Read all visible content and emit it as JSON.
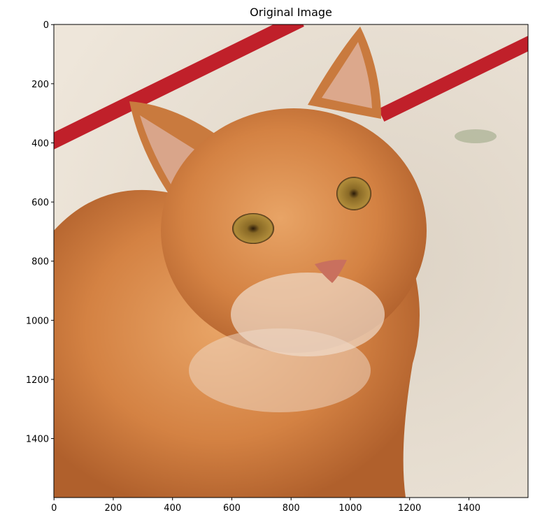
{
  "title": "Original Image",
  "image": {
    "subject": "orange tabby cat"
  },
  "axes": {
    "xlim": [
      0,
      1600
    ],
    "ylim": [
      1600,
      0
    ],
    "x_ticks": [
      "0",
      "200",
      "400",
      "600",
      "800",
      "1000",
      "1200",
      "1400"
    ],
    "y_ticks": [
      "0",
      "200",
      "400",
      "600",
      "800",
      "1000",
      "1200",
      "1400"
    ]
  },
  "colors": {
    "background": "#e9e0d3",
    "stripe": "#c0202a",
    "fur": "#d98a4a"
  }
}
